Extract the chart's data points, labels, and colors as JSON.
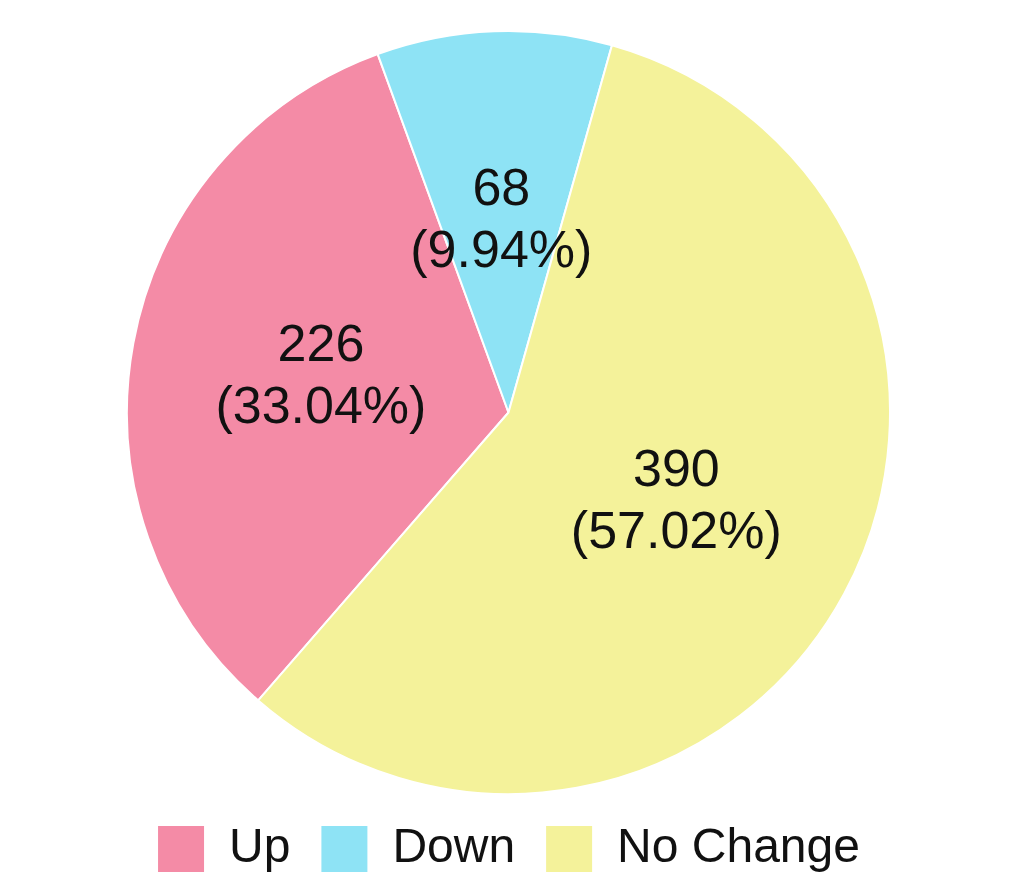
{
  "chart_data": {
    "type": "pie",
    "categories": [
      "Up",
      "Down",
      "No Change"
    ],
    "values": [
      226,
      68,
      390
    ],
    "colors": [
      "#f48ba6",
      "#8ee3f5",
      "#f4f29a"
    ],
    "value_labels": [
      "226 (33.04%)",
      "68 (9.94%)",
      "390 (57.02%)"
    ],
    "legend": "bottom"
  }
}
